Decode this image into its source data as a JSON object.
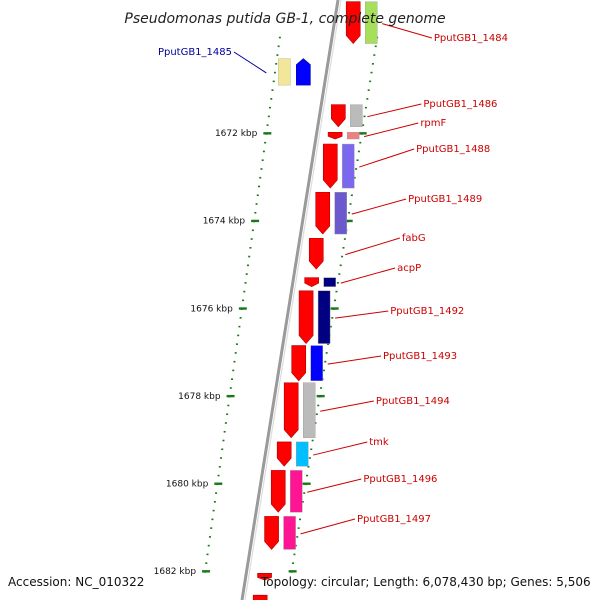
{
  "title": "Pseudomonas putida GB-1, complete genome",
  "accession": "Accession: NC_010322",
  "topology": "Topology: circular; Length: 6,078,430 bp; Genes: 5,506",
  "colors": {
    "forward_cds": "#ff0000",
    "forward_label": "#cc0000",
    "reverse_label": "#000099",
    "backbone": "#888888",
    "tick": "#1a7a1a"
  },
  "axis": {
    "visible_range_kbp": [
      1669,
      1683
    ],
    "ticks": [
      {
        "kbp": 1672,
        "label": "1672 kbp"
      },
      {
        "kbp": 1674,
        "label": "1674 kbp"
      },
      {
        "kbp": 1676,
        "label": "1676 kbp"
      },
      {
        "kbp": 1678,
        "label": "1678 kbp"
      },
      {
        "kbp": 1680,
        "label": "1680 kbp"
      },
      {
        "kbp": 1682,
        "label": "1682 kbp"
      }
    ]
  },
  "genes": [
    {
      "name": "PputGB1_1484",
      "strand": "+",
      "start_kbp": 1669.0,
      "end_kbp": 1670.0,
      "cog_color": "#a6e05a"
    },
    {
      "name": "PputGB1_1485",
      "strand": "-",
      "start_kbp": 1670.3,
      "end_kbp": 1670.95,
      "cog_color": "#f2e69a"
    },
    {
      "name": "PputGB1_1486",
      "strand": "+",
      "start_kbp": 1671.35,
      "end_kbp": 1671.9,
      "cog_color": "#bbbbbb"
    },
    {
      "name": "rpmF",
      "strand": "+",
      "start_kbp": 1671.98,
      "end_kbp": 1672.18,
      "cog_color": "#f08080"
    },
    {
      "name": "PputGB1_1488",
      "strand": "+",
      "start_kbp": 1672.25,
      "end_kbp": 1673.3,
      "cog_color": "#7b68ee"
    },
    {
      "name": "PputGB1_1489",
      "strand": "+",
      "start_kbp": 1673.35,
      "end_kbp": 1674.35,
      "cog_color": "#6a5acd"
    },
    {
      "name": "fabG",
      "strand": "+",
      "start_kbp": 1674.4,
      "end_kbp": 1675.15,
      "cog_color": ""
    },
    {
      "name": "acpP",
      "strand": "+",
      "start_kbp": 1675.3,
      "end_kbp": 1675.55,
      "cog_color": "#000080"
    },
    {
      "name": "PputGB1_1492",
      "strand": "+",
      "start_kbp": 1675.6,
      "end_kbp": 1676.85,
      "cog_color": "#000080"
    },
    {
      "name": "PputGB1_1493",
      "strand": "+",
      "start_kbp": 1676.85,
      "end_kbp": 1677.7,
      "cog_color": "#0000ff"
    },
    {
      "name": "PputGB1_1494",
      "strand": "+",
      "start_kbp": 1677.7,
      "end_kbp": 1679.0,
      "cog_color": "#bbbbbb"
    },
    {
      "name": "tmk",
      "strand": "+",
      "start_kbp": 1679.05,
      "end_kbp": 1679.65,
      "cog_color": "#00bfff"
    },
    {
      "name": "PputGB1_1496",
      "strand": "+",
      "start_kbp": 1679.7,
      "end_kbp": 1680.7,
      "cog_color": "#ff1493"
    },
    {
      "name": "PputGB1_1497",
      "strand": "+",
      "start_kbp": 1680.75,
      "end_kbp": 1681.55,
      "cog_color": "#ff1493"
    },
    {
      "name": "",
      "strand": "+",
      "start_kbp": 1682.05,
      "end_kbp": 1682.25,
      "cog_color": ""
    },
    {
      "name": "",
      "strand": "+",
      "start_kbp": 1682.55,
      "end_kbp": 1683.0,
      "cog_color": ""
    }
  ]
}
